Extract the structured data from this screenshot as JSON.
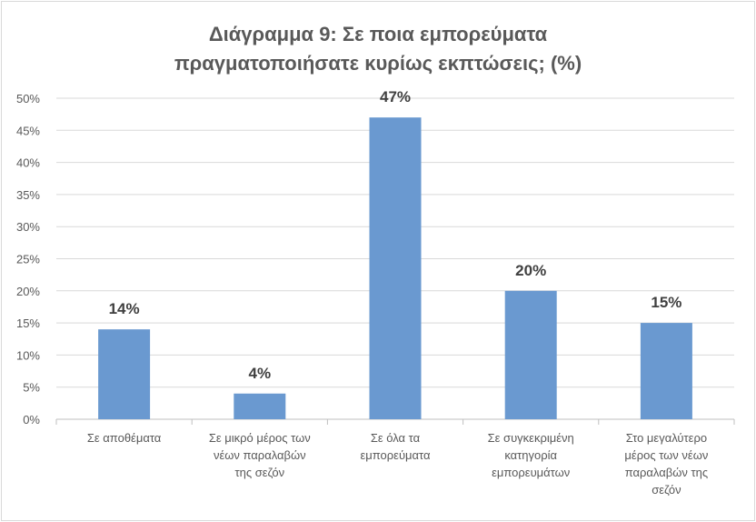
{
  "chart_data": {
    "type": "bar",
    "title_lines": [
      "Διάγραμμα 9: Σε ποια εμπορεύματα",
      "πραγματοποιήσατε κυρίως εκπτώσεις; (%)"
    ],
    "categories": [
      [
        "Σε αποθέματα"
      ],
      [
        "Σε μικρό μέρος των",
        "νέων παραλαβών",
        "της σεζόν"
      ],
      [
        "Σε όλα τα",
        "εμπορεύματα"
      ],
      [
        "Σε συγκεκριμένη",
        "κατηγορία",
        "εμπορευμάτων"
      ],
      [
        "Στο μεγαλύτερο",
        "μέρος των νέων",
        "παραλαβών της",
        "σεζόν"
      ]
    ],
    "values": [
      14,
      4,
      47,
      20,
      15
    ],
    "data_labels": [
      "14%",
      "4%",
      "47%",
      "20%",
      "15%"
    ],
    "y_ticks": [
      "0%",
      "5%",
      "10%",
      "15%",
      "20%",
      "25%",
      "30%",
      "35%",
      "40%",
      "45%",
      "50%"
    ],
    "ylim": [
      0,
      50
    ],
    "grid": true,
    "colors": {
      "bar": "#6a99d0",
      "grid": "#d9d9d9",
      "axis": "#bfbfbf"
    }
  }
}
